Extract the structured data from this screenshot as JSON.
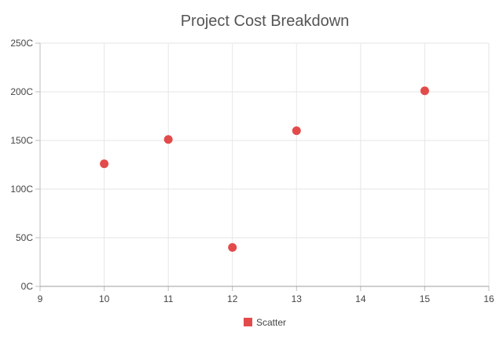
{
  "chart_data": {
    "type": "scatter",
    "title": "Project Cost Breakdown",
    "xlabel": "",
    "ylabel": "",
    "xlim": [
      9,
      16
    ],
    "ylim": [
      0,
      250
    ],
    "x_ticks": [
      "9",
      "10",
      "11",
      "12",
      "13",
      "14",
      "15",
      "16"
    ],
    "y_ticks": [
      "0C",
      "50C",
      "100C",
      "150C",
      "200C",
      "250C"
    ],
    "grid": true,
    "legend_position": "bottom",
    "series": [
      {
        "name": "Scatter",
        "color": "#e34b4b",
        "points": [
          {
            "x": 10,
            "y": 126
          },
          {
            "x": 11,
            "y": 151
          },
          {
            "x": 12,
            "y": 40
          },
          {
            "x": 13,
            "y": 160
          },
          {
            "x": 15,
            "y": 201
          }
        ]
      }
    ]
  }
}
